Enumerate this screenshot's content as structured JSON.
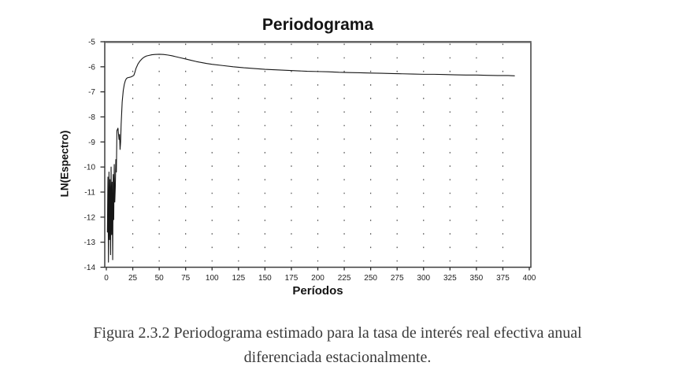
{
  "chart_data": {
    "type": "line",
    "title": "Periodograma",
    "xlabel": "Períodos",
    "ylabel": "LN(Espectro)",
    "xlim": [
      0,
      400
    ],
    "ylim": [
      -14,
      -5
    ],
    "x_ticks": [
      0,
      25,
      50,
      75,
      100,
      125,
      150,
      175,
      200,
      225,
      250,
      275,
      300,
      325,
      350,
      375,
      400
    ],
    "y_ticks": [
      -5,
      -6,
      -7,
      -8,
      -9,
      -10,
      -11,
      -12,
      -13,
      -14
    ],
    "grid": "vertical-dotted-at-x-ticks",
    "legend": "none",
    "series": [
      {
        "name": "LN(Espectro)",
        "x": [
          1,
          1.5,
          2,
          2.5,
          3,
          3.5,
          4,
          4.5,
          5,
          5.5,
          6,
          6.5,
          7,
          7.5,
          8,
          8.5,
          9,
          9.5,
          10,
          11,
          12,
          12.5,
          13,
          13.5,
          14,
          15,
          16,
          17,
          18,
          19,
          20,
          21,
          22,
          23,
          24,
          25,
          26,
          27,
          28,
          30,
          32,
          34,
          36,
          38,
          40,
          43,
          46,
          50,
          54,
          58,
          62,
          66,
          70,
          75,
          80,
          85,
          90,
          95,
          100,
          110,
          120,
          130,
          140,
          150,
          160,
          170,
          180,
          190,
          200,
          210,
          220,
          230,
          240,
          250,
          260,
          270,
          280,
          290,
          300,
          310,
          320,
          330,
          340,
          350,
          360,
          370,
          380,
          386
        ],
        "y": [
          -12.6,
          -10.4,
          -13.8,
          -10.2,
          -12.9,
          -10.5,
          -13.5,
          -10.0,
          -12.7,
          -10.6,
          -13.7,
          -10.3,
          -12.1,
          -9.9,
          -11.4,
          -10.8,
          -9.7,
          -10.2,
          -8.55,
          -8.45,
          -8.9,
          -8.7,
          -9.3,
          -9.0,
          -8.3,
          -7.4,
          -6.95,
          -6.7,
          -6.55,
          -6.47,
          -6.44,
          -6.43,
          -6.42,
          -6.41,
          -6.39,
          -6.37,
          -6.34,
          -6.22,
          -6.07,
          -5.88,
          -5.76,
          -5.67,
          -5.61,
          -5.57,
          -5.55,
          -5.52,
          -5.51,
          -5.5,
          -5.51,
          -5.53,
          -5.56,
          -5.6,
          -5.64,
          -5.69,
          -5.74,
          -5.79,
          -5.83,
          -5.87,
          -5.9,
          -5.95,
          -6.0,
          -6.04,
          -6.07,
          -6.1,
          -6.12,
          -6.14,
          -6.16,
          -6.18,
          -6.19,
          -6.2,
          -6.22,
          -6.23,
          -6.24,
          -6.25,
          -6.26,
          -6.27,
          -6.28,
          -6.29,
          -6.3,
          -6.3,
          -6.31,
          -6.32,
          -6.33,
          -6.33,
          -6.34,
          -6.35,
          -6.35,
          -6.36
        ]
      }
    ]
  },
  "colors": {
    "curve": "#161616",
    "grid_dots": "#4d4d4d",
    "plot_border": "#3d3d3d",
    "plot_top_border": "#5f5f5f",
    "axis_tick": "#2c2c2c",
    "axis_text": "#1f1f1f",
    "caption_text": "#3a3a3a",
    "background": "#ffffff"
  },
  "caption": {
    "line1": "Figura 2.3.2 Periodograma estimado para la tasa de interés real efectiva anual",
    "line2": "diferenciada estacionalmente."
  }
}
